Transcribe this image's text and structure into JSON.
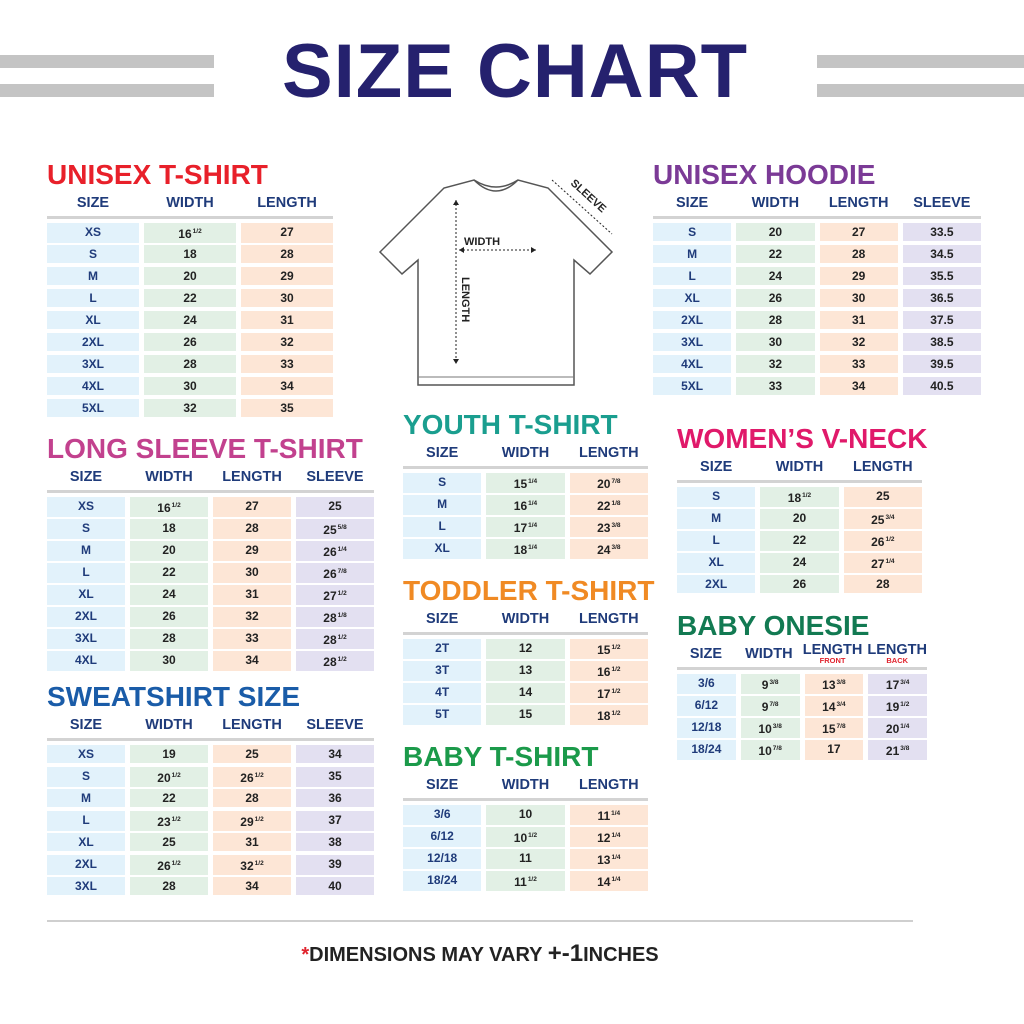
{
  "title": "SIZE CHART",
  "footer": {
    "asterisk": "*",
    "text": "DIMENSIONS MAY VARY ",
    "tolerance": "+-1",
    "unit": "INCHES"
  },
  "diagram": {
    "width_label": "WIDTH",
    "length_label": "LENGTH",
    "sleeve_label": "SLEEVE"
  },
  "colors": {
    "title": "#25216e",
    "header_text": "#1f3b7a",
    "size_cell": "#e2f2fb",
    "width_cell": "#e2f0e5",
    "length_cell": "#fde6d6",
    "sleeve_cell": "#e3e0f1"
  },
  "tables": [
    {
      "title": "UNISEX T-SHIRT",
      "color": "#e8202a",
      "columns": [
        {
          "label": "SIZE"
        },
        {
          "label": "WIDTH"
        },
        {
          "label": "LENGTH"
        }
      ],
      "rows": [
        [
          "XS",
          "16 1/2",
          "27"
        ],
        [
          "S",
          "18",
          "28"
        ],
        [
          "M",
          "20",
          "29"
        ],
        [
          "L",
          "22",
          "30"
        ],
        [
          "XL",
          "24",
          "31"
        ],
        [
          "2XL",
          "26",
          "32"
        ],
        [
          "3XL",
          "28",
          "33"
        ],
        [
          "4XL",
          "30",
          "34"
        ],
        [
          "5XL",
          "32",
          "35"
        ]
      ]
    },
    {
      "title": "LONG SLEEVE T-SHIRT",
      "color": "#c2418e",
      "columns": [
        {
          "label": "SIZE"
        },
        {
          "label": "WIDTH"
        },
        {
          "label": "LENGTH"
        },
        {
          "label": "SLEEVE"
        }
      ],
      "rows": [
        [
          "XS",
          "16 1/2",
          "27",
          "25"
        ],
        [
          "S",
          "18",
          "28",
          "25 5/8"
        ],
        [
          "M",
          "20",
          "29",
          "26 1/4"
        ],
        [
          "L",
          "22",
          "30",
          "26 7/8"
        ],
        [
          "XL",
          "24",
          "31",
          "27 1/2"
        ],
        [
          "2XL",
          "26",
          "32",
          "28 1/8"
        ],
        [
          "3XL",
          "28",
          "33",
          "28 1/2"
        ],
        [
          "4XL",
          "30",
          "34",
          "28 1/2"
        ]
      ]
    },
    {
      "title": "SWEATSHIRT SIZE",
      "color": "#1a5ca8",
      "columns": [
        {
          "label": "SIZE"
        },
        {
          "label": "WIDTH"
        },
        {
          "label": "LENGTH"
        },
        {
          "label": "SLEEVE"
        }
      ],
      "rows": [
        [
          "XS",
          "19",
          "25",
          "34"
        ],
        [
          "S",
          "20 1/2",
          "26 1/2",
          "35"
        ],
        [
          "M",
          "22",
          "28",
          "36"
        ],
        [
          "L",
          "23 1/2",
          "29 1/2",
          "37"
        ],
        [
          "XL",
          "25",
          "31",
          "38"
        ],
        [
          "2XL",
          "26 1/2",
          "32 1/2",
          "39"
        ],
        [
          "3XL",
          "28",
          "34",
          "40"
        ]
      ]
    },
    {
      "title": "YOUTH T-SHIRT",
      "color": "#1a9e8f",
      "columns": [
        {
          "label": "SIZE"
        },
        {
          "label": "WIDTH"
        },
        {
          "label": "LENGTH"
        }
      ],
      "rows": [
        [
          "S",
          "15 1/4",
          "20 7/8"
        ],
        [
          "M",
          "16 1/4",
          "22 1/8"
        ],
        [
          "L",
          "17 1/4",
          "23 3/8"
        ],
        [
          "XL",
          "18 1/4",
          "24 3/8"
        ]
      ]
    },
    {
      "title": "TODDLER T-SHIRT",
      "color": "#f08a24",
      "columns": [
        {
          "label": "SIZE"
        },
        {
          "label": "WIDTH"
        },
        {
          "label": "LENGTH"
        }
      ],
      "rows": [
        [
          "2T",
          "12",
          "15 1/2"
        ],
        [
          "3T",
          "13",
          "16 1/2"
        ],
        [
          "4T",
          "14",
          "17 1/2"
        ],
        [
          "5T",
          "15",
          "18 1/2"
        ]
      ]
    },
    {
      "title": "BABY T-SHIRT",
      "color": "#1b9a4a",
      "columns": [
        {
          "label": "SIZE"
        },
        {
          "label": "WIDTH"
        },
        {
          "label": "LENGTH"
        }
      ],
      "rows": [
        [
          "3/6",
          "10",
          "11 1/4"
        ],
        [
          "6/12",
          "10 1/2",
          "12 1/4"
        ],
        [
          "12/18",
          "11",
          "13 1/4"
        ],
        [
          "18/24",
          "11 1/2",
          "14 1/4"
        ]
      ]
    },
    {
      "title": "UNISEX HOODIE",
      "color": "#7b3a96",
      "columns": [
        {
          "label": "SIZE"
        },
        {
          "label": "WIDTH"
        },
        {
          "label": "LENGTH"
        },
        {
          "label": "SLEEVE"
        }
      ],
      "rows": [
        [
          "S",
          "20",
          "27",
          "33.5"
        ],
        [
          "M",
          "22",
          "28",
          "34.5"
        ],
        [
          "L",
          "24",
          "29",
          "35.5"
        ],
        [
          "XL",
          "26",
          "30",
          "36.5"
        ],
        [
          "2XL",
          "28",
          "31",
          "37.5"
        ],
        [
          "3XL",
          "30",
          "32",
          "38.5"
        ],
        [
          "4XL",
          "32",
          "33",
          "39.5"
        ],
        [
          "5XL",
          "33",
          "34",
          "40.5"
        ]
      ]
    },
    {
      "title": "WOMEN’S V-NECK",
      "color": "#e0196a",
      "columns": [
        {
          "label": "SIZE"
        },
        {
          "label": "WIDTH"
        },
        {
          "label": "LENGTH"
        }
      ],
      "rows": [
        [
          "S",
          "18 1/2",
          "25"
        ],
        [
          "M",
          "20",
          "25 3/4"
        ],
        [
          "L",
          "22",
          "26 1/2"
        ],
        [
          "XL",
          "24",
          "27 1/4"
        ],
        [
          "2XL",
          "26",
          "28"
        ]
      ]
    },
    {
      "title": "BABY ONESIE",
      "color": "#127a52",
      "columns": [
        {
          "label": "SIZE"
        },
        {
          "label": "WIDTH"
        },
        {
          "label": "LENGTH",
          "sub": "FRONT"
        },
        {
          "label": "LENGTH",
          "sub": "BACK"
        }
      ],
      "rows": [
        [
          "3/6",
          "9 3/8",
          "13 3/8",
          "17 3/4"
        ],
        [
          "6/12",
          "9 7/8",
          "14 3/4",
          "19 1/2"
        ],
        [
          "12/18",
          "10 3/8",
          "15 7/8",
          "20 1/4"
        ],
        [
          "18/24",
          "10 7/8",
          "17",
          "21 3/8"
        ]
      ]
    }
  ]
}
